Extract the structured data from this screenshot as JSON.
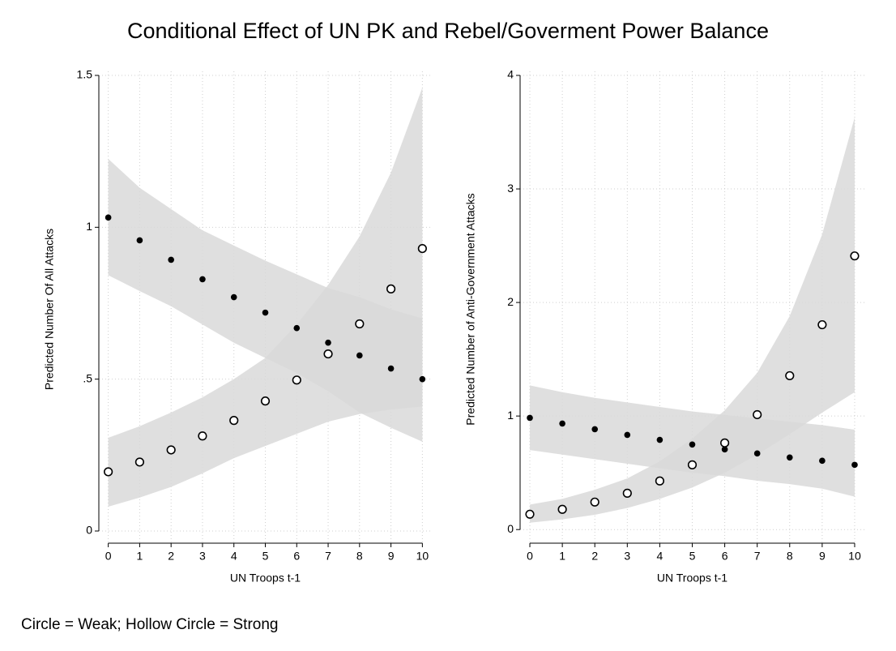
{
  "title": "Conditional Effect of UN PK and Rebel/Goverment Power Balance",
  "note": "Circle = Weak; Hollow Circle = Strong",
  "chart_data": [
    {
      "type": "scatter",
      "xlabel": "UN Troops t-1",
      "ylabel": "Predicted Number Of All Attacks",
      "x": [
        0,
        1,
        2,
        3,
        4,
        5,
        6,
        7,
        8,
        9,
        10
      ],
      "xlim": [
        -0.3,
        10.3
      ],
      "xticks": [
        0,
        1,
        2,
        3,
        4,
        5,
        6,
        7,
        8,
        9,
        10
      ],
      "ylim": [
        -0.04,
        1.5
      ],
      "yticks": [
        0,
        {
          "value": 0.5,
          "label": ".5"
        },
        1,
        1.5
      ],
      "grid": true,
      "band_color": "#d9d9d9",
      "series": [
        {
          "marker": "filled",
          "color": "#000000",
          "values": [
            1.032,
            0.957,
            0.893,
            0.829,
            0.77,
            0.719,
            0.668,
            0.62,
            0.578,
            0.535,
            0.5
          ],
          "upper": [
            1.225,
            1.13,
            1.06,
            0.99,
            0.94,
            0.89,
            0.845,
            0.8,
            0.77,
            0.73,
            0.7
          ],
          "lower": [
            0.842,
            0.79,
            0.74,
            0.68,
            0.62,
            0.57,
            0.52,
            0.46,
            0.39,
            0.34,
            0.294
          ]
        },
        {
          "marker": "hollow",
          "color": "#000000",
          "values": [
            0.195,
            0.227,
            0.267,
            0.313,
            0.364,
            0.428,
            0.497,
            0.583,
            0.682,
            0.797,
            0.93
          ],
          "upper": [
            0.307,
            0.345,
            0.39,
            0.44,
            0.5,
            0.57,
            0.68,
            0.81,
            0.97,
            1.18,
            1.46
          ],
          "lower": [
            0.08,
            0.11,
            0.145,
            0.19,
            0.24,
            0.28,
            0.32,
            0.36,
            0.385,
            0.4,
            0.41
          ]
        }
      ]
    },
    {
      "type": "scatter",
      "xlabel": "UN Troops t-1",
      "ylabel": "Predicted Number of Anti-Government Attacks",
      "x": [
        0,
        1,
        2,
        3,
        4,
        5,
        6,
        7,
        8,
        9,
        10
      ],
      "xlim": [
        -0.3,
        10.3
      ],
      "xticks": [
        0,
        1,
        2,
        3,
        4,
        5,
        6,
        7,
        8,
        9,
        10
      ],
      "ylim": [
        -0.12,
        4
      ],
      "yticks": [
        0,
        1,
        2,
        3,
        4
      ],
      "grid": true,
      "band_color": "#d9d9d9",
      "series": [
        {
          "marker": "filled",
          "color": "#000000",
          "values": [
            0.984,
            0.934,
            0.884,
            0.834,
            0.79,
            0.749,
            0.706,
            0.67,
            0.635,
            0.606,
            0.57
          ],
          "upper": [
            1.27,
            1.21,
            1.16,
            1.12,
            1.08,
            1.04,
            1.01,
            0.98,
            0.95,
            0.92,
            0.88
          ],
          "lower": [
            0.7,
            0.66,
            0.62,
            0.58,
            0.54,
            0.5,
            0.47,
            0.43,
            0.4,
            0.36,
            0.29
          ]
        },
        {
          "marker": "hollow",
          "color": "#000000",
          "values": [
            0.135,
            0.178,
            0.242,
            0.32,
            0.428,
            0.57,
            0.763,
            1.012,
            1.355,
            1.804,
            2.41
          ],
          "upper": [
            0.22,
            0.27,
            0.35,
            0.45,
            0.6,
            0.8,
            1.05,
            1.38,
            1.88,
            2.6,
            3.63
          ],
          "lower": [
            0.06,
            0.09,
            0.13,
            0.19,
            0.27,
            0.37,
            0.5,
            0.66,
            0.84,
            1.03,
            1.21
          ]
        }
      ]
    }
  ]
}
